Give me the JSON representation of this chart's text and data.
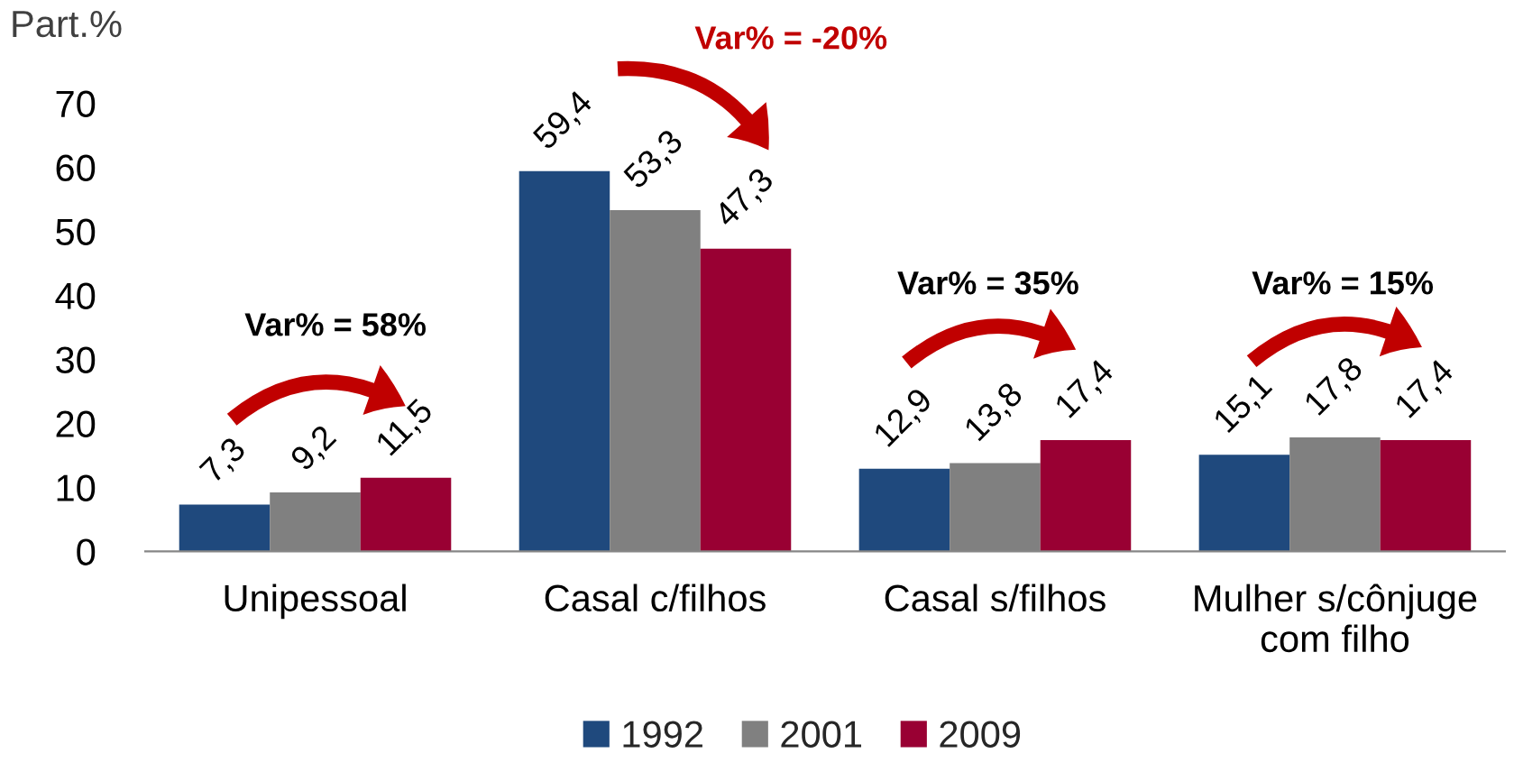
{
  "chart_data": {
    "type": "bar",
    "ylabel": "Part.%",
    "categories": [
      "Unipessoal",
      "Casal c/filhos",
      "Casal s/filhos",
      "Mulher s/cônjuge\ncom filho"
    ],
    "series": [
      {
        "name": "1992",
        "color": "#1f497d",
        "values": [
          7.3,
          59.4,
          12.9,
          15.1
        ],
        "value_labels": [
          "7,3",
          "59,4",
          "12,9",
          "15,1"
        ]
      },
      {
        "name": "2001",
        "color": "#808080",
        "values": [
          9.2,
          53.3,
          13.8,
          17.8
        ],
        "value_labels": [
          "9,2",
          "53,3",
          "13,8",
          "17,8"
        ]
      },
      {
        "name": "2009",
        "color": "#990033",
        "values": [
          11.5,
          47.3,
          17.4,
          17.4
        ],
        "value_labels": [
          "11,5",
          "47,3",
          "17,4",
          "17,4"
        ]
      }
    ],
    "ylim": [
      0,
      70
    ],
    "yticks": [
      0,
      10,
      20,
      30,
      40,
      50,
      60,
      70
    ],
    "grid": false,
    "legend": "bottom",
    "annotations": [
      "Var% = 58%",
      "Var% = -20%",
      "Var% = 35%",
      "Var% = 15%"
    ]
  }
}
